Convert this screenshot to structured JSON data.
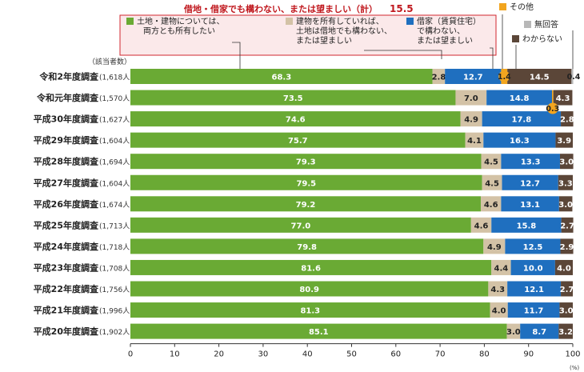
{
  "header": {
    "highlight_text": "借地・借家でも構わない、または望ましい（計）",
    "highlight_value": "15.5",
    "base_label": "（該当者数）",
    "unit_label": "(%)"
  },
  "legend": {
    "items": [
      {
        "key": "own",
        "lines": [
          "土地・建物については、",
          "両方とも所有したい"
        ]
      },
      {
        "key": "lease_land",
        "lines": [
          "建物を所有していれば、",
          "土地は借地でも構わない、",
          "または望ましい"
        ]
      },
      {
        "key": "rent",
        "lines": [
          "借家（賃貸住宅）",
          "で構わない、",
          "または望ましい"
        ]
      },
      {
        "key": "other",
        "lines": [
          "その他"
        ]
      },
      {
        "key": "no_answer",
        "lines": [
          "無回答"
        ]
      },
      {
        "key": "dont_know",
        "lines": [
          "わからない"
        ]
      }
    ]
  },
  "colors": {
    "own": "#6aaa34",
    "lease_land": "#d3c2a6",
    "rent": "#1f6fbf",
    "other": "#f2a51f",
    "no_answer": "#b8b8b8",
    "dont_know": "#5b4638",
    "highlight": "#c0181e",
    "legend_bg": "#fbe9ea",
    "legend_border": "#d0262e"
  },
  "chart_data": {
    "type": "bar",
    "orientation": "horizontal-stacked",
    "xlim": [
      0,
      100
    ],
    "xticks": [
      0,
      10,
      20,
      30,
      40,
      50,
      60,
      70,
      80,
      90,
      100
    ],
    "categories": [
      {
        "name": "令和2年度調査",
        "n": "(1,618人)"
      },
      {
        "name": "令和元年度調査",
        "n": "(1,570人)"
      },
      {
        "name": "平成30年度調査",
        "n": "(1,627人)"
      },
      {
        "name": "平成29年度調査",
        "n": "(1,604人)"
      },
      {
        "name": "平成28年度調査",
        "n": "(1,694人)"
      },
      {
        "name": "平成27年度調査",
        "n": "(1,604人)"
      },
      {
        "name": "平成26年度調査",
        "n": "(1,674人)"
      },
      {
        "name": "平成25年度調査",
        "n": "(1,713人)"
      },
      {
        "name": "平成24年度調査",
        "n": "(1,718人)"
      },
      {
        "name": "平成23年度調査",
        "n": "(1,708人)"
      },
      {
        "name": "平成22年度調査",
        "n": "(1,756人)"
      },
      {
        "name": "平成21年度調査",
        "n": "(1,996人)"
      },
      {
        "name": "平成20年度調査",
        "n": "(1,902人)"
      }
    ],
    "series": [
      {
        "key": "own",
        "values": [
          68.3,
          73.5,
          74.6,
          75.7,
          79.3,
          79.5,
          79.2,
          77.0,
          79.8,
          81.6,
          80.9,
          81.3,
          85.1
        ]
      },
      {
        "key": "lease_land",
        "values": [
          2.8,
          7.0,
          4.9,
          4.1,
          4.5,
          4.5,
          4.6,
          4.6,
          4.9,
          4.4,
          4.3,
          4.0,
          3.0
        ]
      },
      {
        "key": "rent",
        "values": [
          12.7,
          14.8,
          17.8,
          16.3,
          13.3,
          12.7,
          13.1,
          15.8,
          12.5,
          10.0,
          12.1,
          11.7,
          8.7
        ]
      },
      {
        "key": "other",
        "values": [
          1.4,
          0.3,
          null,
          null,
          null,
          null,
          null,
          null,
          null,
          null,
          null,
          null,
          null
        ]
      },
      {
        "key": "dont_know",
        "values": [
          14.5,
          4.3,
          2.8,
          3.9,
          3.0,
          3.3,
          3.0,
          2.7,
          2.9,
          4.0,
          2.7,
          3.0,
          3.2
        ]
      },
      {
        "key": "no_answer",
        "values": [
          0.4,
          null,
          null,
          null,
          null,
          null,
          null,
          null,
          null,
          null,
          null,
          null,
          null
        ]
      }
    ]
  }
}
